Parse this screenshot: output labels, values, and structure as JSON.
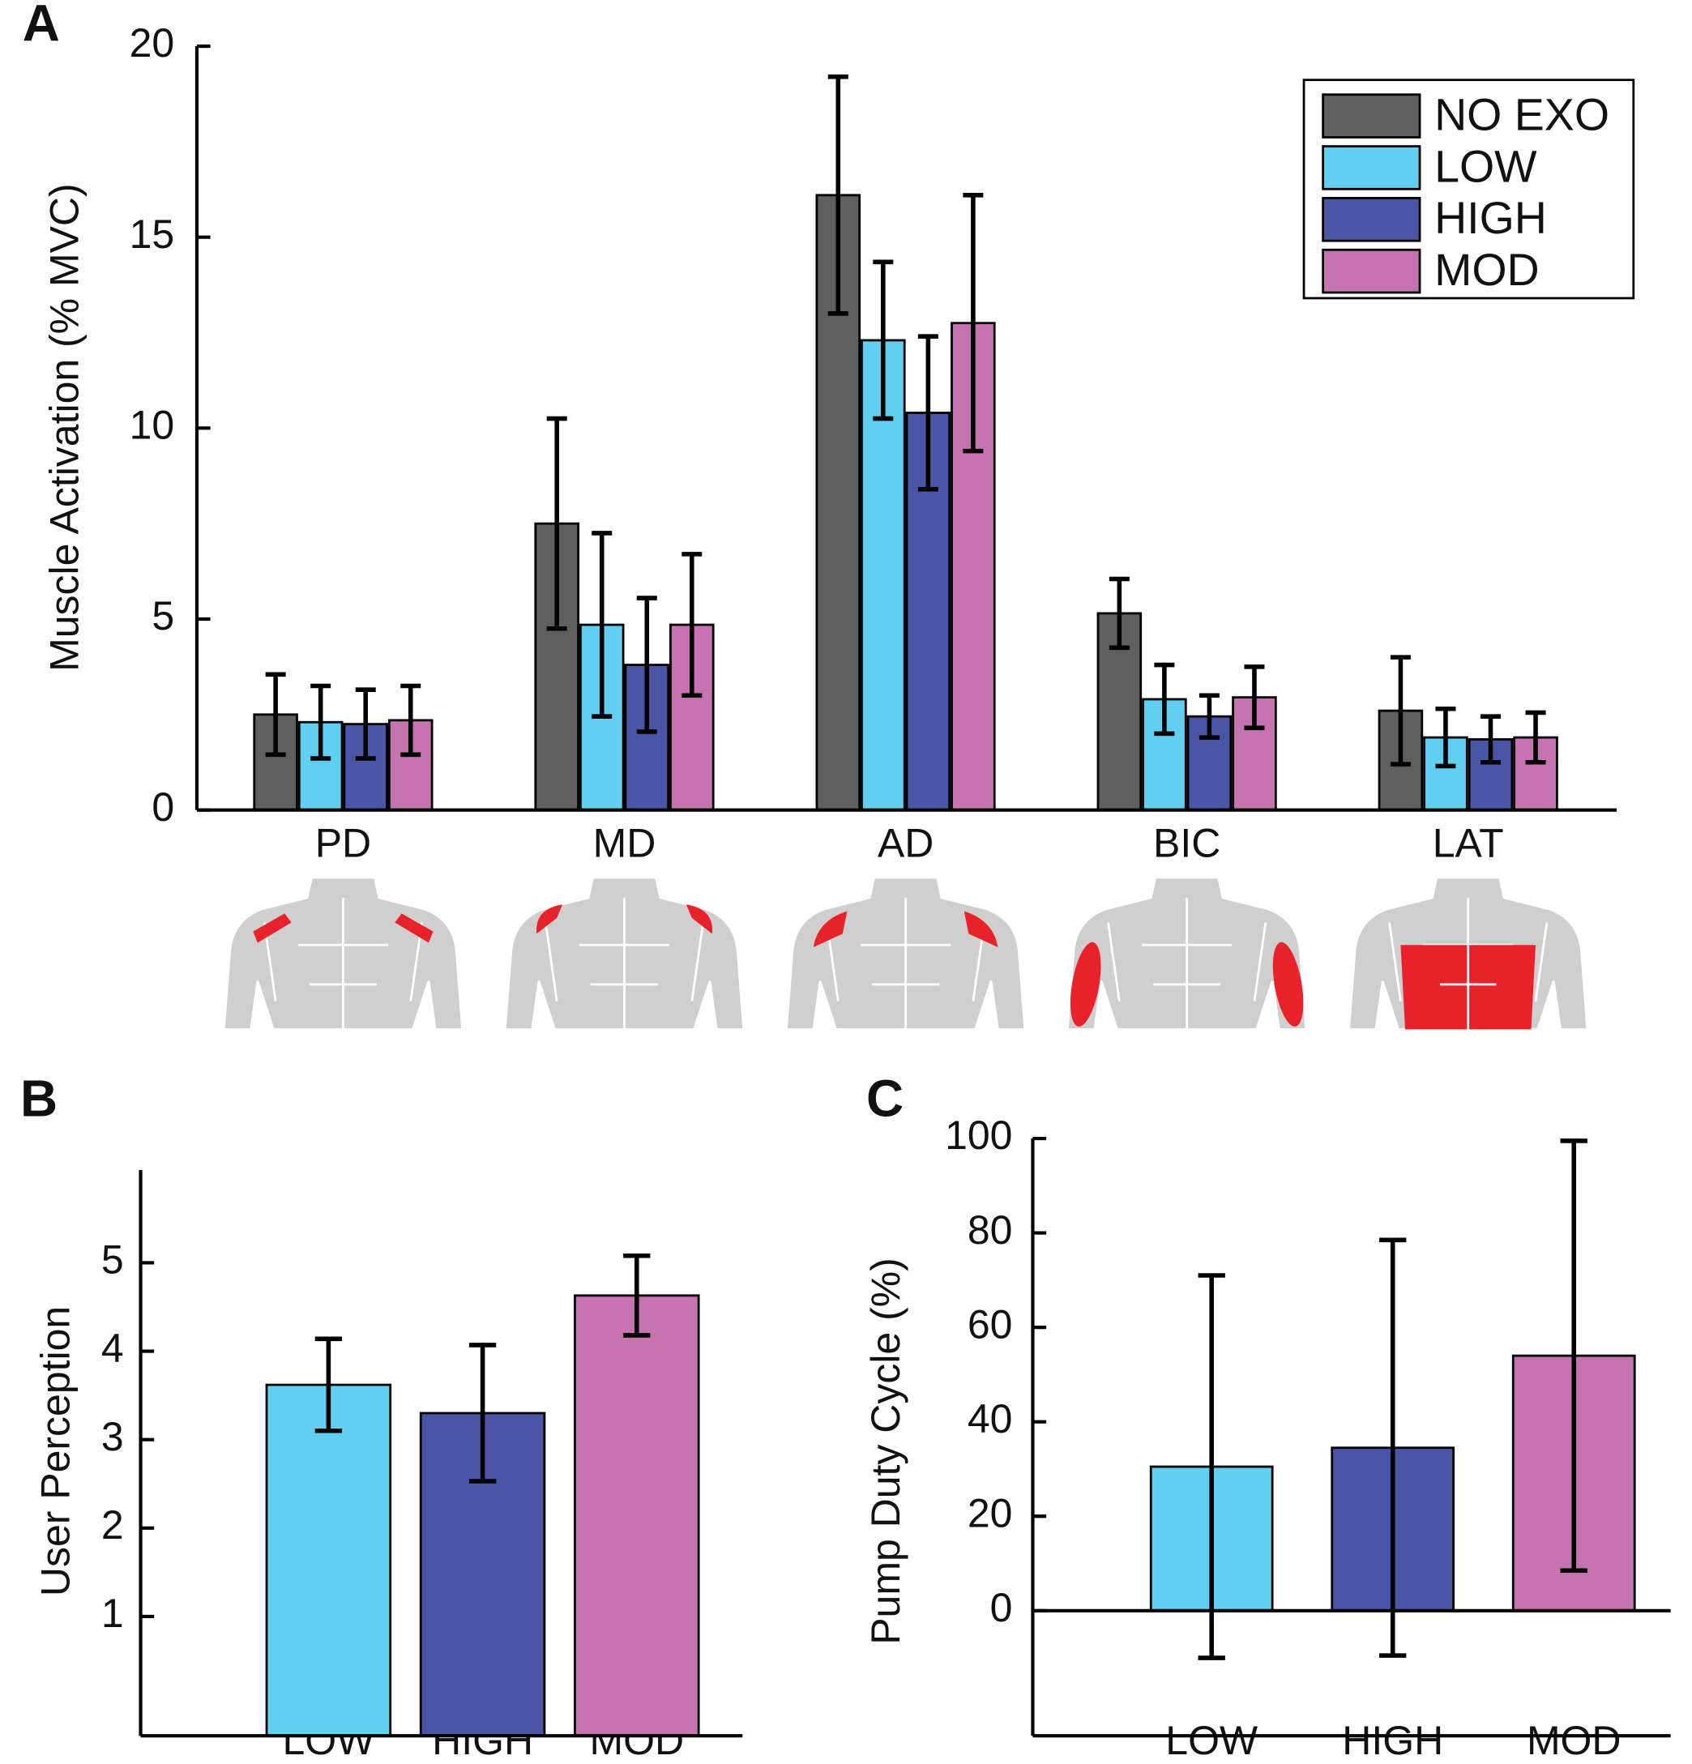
{
  "chart_data": [
    {
      "type": "bar",
      "panel": "A",
      "ylabel": "Muscle Activation (% MVC)",
      "categories": [
        "PD",
        "MD",
        "AD",
        "BIC",
        "LAT"
      ],
      "series": [
        {
          "name": "NO EXO",
          "color": "#5f5f5f",
          "values": [
            2.5,
            7.5,
            16.1,
            5.15,
            2.6
          ],
          "errors": [
            1.05,
            2.75,
            3.1,
            0.9,
            1.4
          ]
        },
        {
          "name": "LOW",
          "color": "#63cff0",
          "values": [
            2.3,
            4.85,
            12.3,
            2.9,
            1.9
          ],
          "errors": [
            0.95,
            2.4,
            2.05,
            0.9,
            0.75
          ]
        },
        {
          "name": "HIGH",
          "color": "#4a55a6",
          "values": [
            2.25,
            3.8,
            10.4,
            2.45,
            1.85
          ],
          "errors": [
            0.9,
            1.75,
            2.0,
            0.55,
            0.6
          ]
        },
        {
          "name": "MOD",
          "color": "#c674b0",
          "values": [
            2.35,
            4.85,
            12.75,
            2.95,
            1.9
          ],
          "errors": [
            0.9,
            1.85,
            3.35,
            0.8,
            0.65
          ]
        }
      ],
      "ylim": [
        0,
        20
      ],
      "yticks": [
        0,
        5,
        10,
        15,
        20
      ],
      "legend": "upper right",
      "grid": false
    },
    {
      "type": "bar",
      "panel": "B",
      "ylabel": "User Perception",
      "categories": [
        "LOW",
        "HIGH",
        "MOD"
      ],
      "values": [
        3.62,
        3.3,
        4.63
      ],
      "errors": [
        0.52,
        0.77,
        0.45
      ],
      "colors": [
        "#63cff0",
        "#4a55a6",
        "#c674b0"
      ],
      "ylim": [
        -0.35,
        6.05
      ],
      "yticks": [
        1,
        2,
        3,
        4,
        5
      ],
      "grid": false
    },
    {
      "type": "bar",
      "panel": "C",
      "ylabel": "Pump Duty Cycle (%)",
      "categories": [
        "LOW",
        "HIGH",
        "MOD"
      ],
      "values": [
        30.5,
        34.5,
        54
      ],
      "errors": [
        40.5,
        44,
        45.5
      ],
      "colors": [
        "#63cff0",
        "#4a55a6",
        "#c674b0"
      ],
      "ylim": [
        -26.5,
        100
      ],
      "yticks": [
        0,
        20,
        40,
        60,
        80,
        100
      ],
      "zero_line": true,
      "grid": false
    }
  ]
}
